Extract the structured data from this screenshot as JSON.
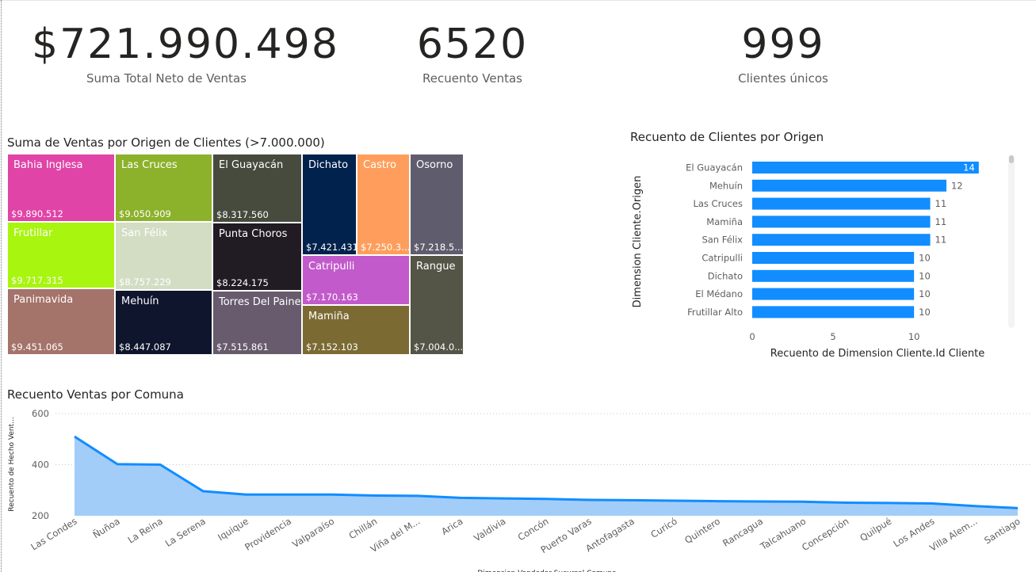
{
  "kpis": [
    {
      "value": "$721.990.498",
      "label": "Suma Total Neto de Ventas"
    },
    {
      "value": "6520",
      "label": "Recuento Ventas"
    },
    {
      "value": "999",
      "label": "Clientes únicos"
    }
  ],
  "treemap": {
    "title": "Suma de Ventas por Origen de Clientes (>7.000.000)"
  },
  "bar_chart": {
    "title": "Recuento de Clientes por Origen"
  },
  "line_chart": {
    "title": "Recuento Ventas por Comuna"
  },
  "colors": {
    "bar": "#118DFF",
    "area_fill": "#A3CDF9",
    "area_line": "#118DFF"
  },
  "chart_data": [
    {
      "type": "treemap",
      "title": "Suma de Ventas por Origen de Clientes (>7.000.000)",
      "items": [
        {
          "name": "Bahia Inglesa",
          "label": "$9.890.512",
          "value": 9890512,
          "color": "#E044A7"
        },
        {
          "name": "Frutillar",
          "label": "$9.717.315",
          "value": 9717315,
          "color": "#A8F50F"
        },
        {
          "name": "Panimavida",
          "label": "$9.451.065",
          "value": 9451065,
          "color": "#A4736A"
        },
        {
          "name": "Las Cruces",
          "label": "$9.050.909",
          "value": 9050909,
          "color": "#8CB12A"
        },
        {
          "name": "San Félix",
          "label": "$8.757.229",
          "value": 8757229,
          "color": "#D3DDC3"
        },
        {
          "name": "Mehuín",
          "label": "$8.447.087",
          "value": 8447087,
          "color": "#0E152C"
        },
        {
          "name": "El Guayacán",
          "label": "$8.317.560",
          "value": 8317560,
          "color": "#474B3E"
        },
        {
          "name": "Punta Choros",
          "label": "$8.224.175",
          "value": 8224175,
          "color": "#211C24"
        },
        {
          "name": "Torres Del Paine",
          "label": "$7.515.861",
          "value": 7515861,
          "color": "#675B6D"
        },
        {
          "name": "Dichato",
          "label": "$7.421.431",
          "value": 7421431,
          "color": "#00224D"
        },
        {
          "name": "Castro",
          "label": "$7.250.3...",
          "value": 7250300,
          "color": "#FF9E5C"
        },
        {
          "name": "Osorno",
          "label": "$7.218.5...",
          "value": 7218500,
          "color": "#5F5D6D"
        },
        {
          "name": "Catripulli",
          "label": "$7.170.163",
          "value": 7170163,
          "color": "#C25ACB"
        },
        {
          "name": "Mamiña",
          "label": "$7.152.103",
          "value": 7152103,
          "color": "#7B6B33"
        },
        {
          "name": "Rangue",
          "label": "$7.004.0...",
          "value": 7004000,
          "color": "#555547"
        }
      ]
    },
    {
      "type": "bar",
      "orientation": "horizontal",
      "title": "Recuento de Clientes por Origen",
      "categories": [
        "El Guayacán",
        "Mehuín",
        "Las Cruces",
        "Mamiña",
        "San Félix",
        "Catripulli",
        "Dichato",
        "El Médano",
        "Frutillar Alto"
      ],
      "values": [
        14,
        12,
        11,
        11,
        11,
        10,
        10,
        10,
        10
      ],
      "xlabel": "Recuento de Dimension Cliente.Id Cliente",
      "ylabel": "Dimension Cliente.Origen",
      "xlim": [
        0,
        14.5
      ],
      "xticks": [
        "0",
        "5",
        "10"
      ]
    },
    {
      "type": "area",
      "title": "Recuento Ventas por Comuna",
      "categories": [
        "Las Condes",
        "Ñuñoa",
        "La Reina",
        "La Serena",
        "Iquique",
        "Providencia",
        "Valparaíso",
        "Chillán",
        "Viña del M...",
        "Arica",
        "Valdivia",
        "Concón",
        "Puerto Varas",
        "Antofagasta",
        "Curicó",
        "Quintero",
        "Rancagua",
        "Talcahuano",
        "Concepción",
        "Quilpué",
        "Los Andes",
        "Villa Alem...",
        "Santiago"
      ],
      "values": [
        510,
        402,
        400,
        296,
        283,
        283,
        283,
        279,
        278,
        270,
        268,
        266,
        262,
        261,
        259,
        257,
        256,
        255,
        251,
        250,
        248,
        238,
        230
      ],
      "ylabel": "Recuento de Hecho Vent...",
      "xlabel": "Dimension Vendedor Sucursal Comuna",
      "ylim": [
        200,
        600
      ],
      "yticks": [
        "200",
        "400",
        "600"
      ],
      "grid": true
    }
  ]
}
